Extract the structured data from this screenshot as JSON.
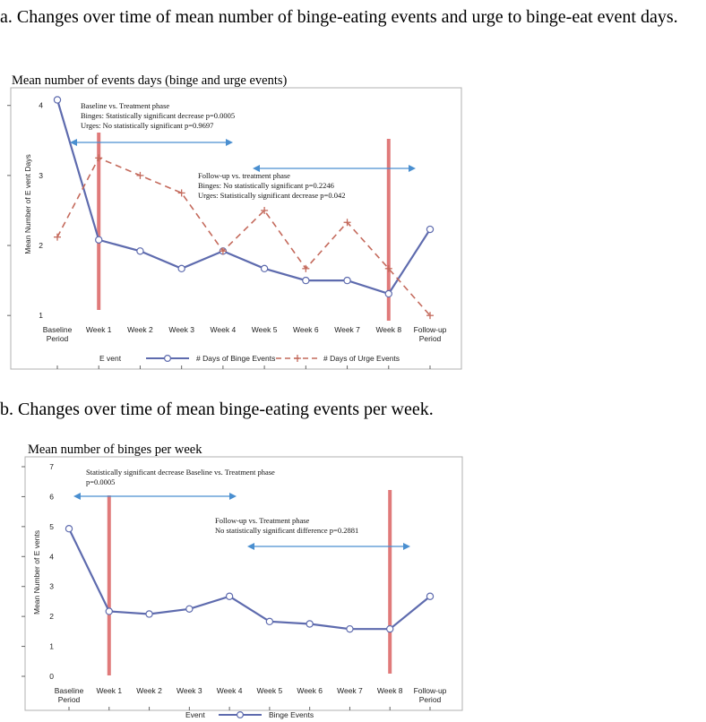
{
  "captions": {
    "a": "a. Changes over time of mean number of binge-eating events and urge to binge-eat event days.",
    "b": "b. Changes over time of mean binge-eating events per week."
  },
  "chart_data": [
    {
      "type": "line",
      "title": "Mean number of events days (binge and urge events)",
      "ylabel": "Mean Number of E vent Days",
      "xlabel": "",
      "categories": [
        "Baseline Period",
        "Week 1",
        "Week 2",
        "Week 3",
        "Week 4",
        "Week 5",
        "Week 6",
        "Week 7",
        "Week 8",
        "Follow-up Period"
      ],
      "yticks": [
        1,
        2,
        3,
        4
      ],
      "ylim": [
        0.9,
        4.15
      ],
      "grid": false,
      "series": [
        {
          "name": "# Days of Binge Events",
          "style": "solid-circle",
          "color": "#5e6bae",
          "values": [
            4.08,
            2.08,
            1.92,
            1.67,
            1.92,
            1.67,
            1.5,
            1.5,
            1.31,
            2.23
          ]
        },
        {
          "name": "# Days of Urge Events",
          "style": "dashed-plus",
          "color": "#c46a5c",
          "values": [
            2.12,
            3.25,
            3.0,
            2.75,
            1.92,
            2.5,
            1.67,
            2.33,
            1.67,
            1.0
          ]
        }
      ],
      "legend": {
        "title": "E vent",
        "placement": "bottom"
      },
      "annotations": [
        {
          "lines": [
            "Baseline vs. Treatment phase",
            "Binges: Statistically significant decrease p=0.0005",
            "Urges: No statistically significant p=0.9697"
          ]
        },
        {
          "lines": [
            "Follow-up vs. treatment phase",
            "Binges: No statistically significant p=0.2246",
            "Urges: Statistically significant decrease p=0.042"
          ]
        }
      ]
    },
    {
      "type": "line",
      "title": "Mean number of binges per week",
      "ylabel": "Mean Number of E vents",
      "xlabel": "",
      "categories": [
        "Baseline Period",
        "Week 1",
        "Week 2",
        "Week 3",
        "Week 4",
        "Week 5",
        "Week 6",
        "Week 7",
        "Week 8",
        "Follow-up Period"
      ],
      "yticks": [
        0,
        1,
        2,
        3,
        4,
        5,
        6,
        7
      ],
      "ylim": [
        0,
        7
      ],
      "grid": false,
      "series": [
        {
          "name": "Binge Events",
          "style": "solid-circle",
          "color": "#5e6bae",
          "values": [
            4.93,
            2.17,
            2.08,
            2.25,
            2.67,
            1.83,
            1.75,
            1.58,
            1.58,
            2.67
          ]
        }
      ],
      "legend": {
        "title": "Event",
        "placement": "bottom"
      },
      "annotations": [
        {
          "lines": [
            "Statistically significant decrease Baseline vs. Treatment phase",
            "p=0.0005"
          ]
        },
        {
          "lines": [
            "Follow-up vs. Treatment phase",
            "No statistically significant difference p=0.2881"
          ]
        }
      ]
    }
  ],
  "colors": {
    "binge_line": "#5e6bae",
    "urge_line": "#c46a5c",
    "phase_marker": "#e07a7a",
    "arrow": "#4a8fd0",
    "frame": "#b0b0b0"
  }
}
